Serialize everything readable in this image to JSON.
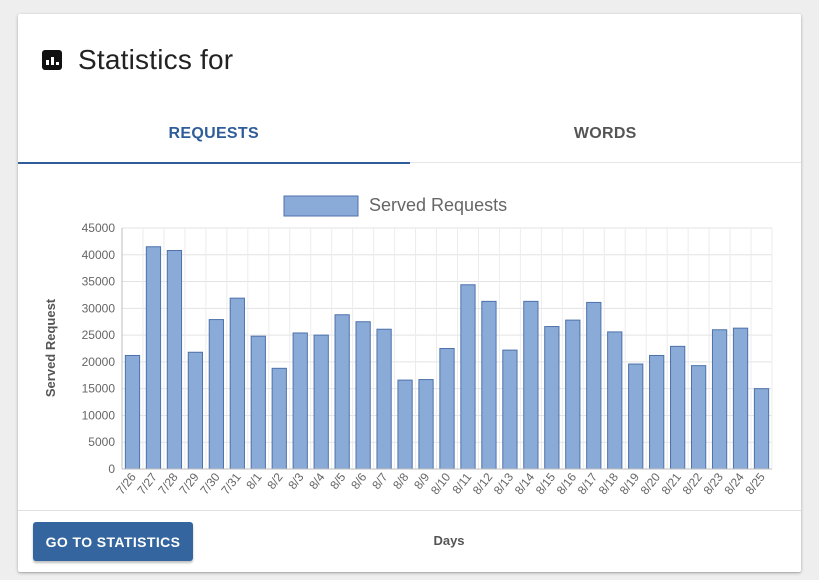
{
  "header": {
    "title": "Statistics for",
    "icon": "bar-chart-icon"
  },
  "tabs": [
    {
      "label": "REQUESTS",
      "active": true
    },
    {
      "label": "WORDS",
      "active": false
    }
  ],
  "footer": {
    "button_label": "GO TO STATISTICS"
  },
  "colors": {
    "accent": "#2f5d9a",
    "bar_fill": "#8aaad8",
    "bar_stroke": "#4d72ab",
    "button": "#34659e"
  },
  "chart_data": {
    "type": "bar",
    "title": "",
    "xlabel": "Days",
    "ylabel": "Served Request",
    "ylim": [
      0,
      45000
    ],
    "yticks": [
      0,
      5000,
      10000,
      15000,
      20000,
      25000,
      30000,
      35000,
      40000,
      45000
    ],
    "grid": true,
    "legend_position": "top-center",
    "categories": [
      "7/26",
      "7/27",
      "7/28",
      "7/29",
      "7/30",
      "7/31",
      "8/1",
      "8/2",
      "8/3",
      "8/4",
      "8/5",
      "8/6",
      "8/7",
      "8/8",
      "8/9",
      "8/10",
      "8/11",
      "8/12",
      "8/13",
      "8/14",
      "8/15",
      "8/16",
      "8/17",
      "8/18",
      "8/19",
      "8/20",
      "8/21",
      "8/22",
      "8/23",
      "8/24",
      "8/25"
    ],
    "series": [
      {
        "name": "Served Requests",
        "values": [
          21200,
          41500,
          40800,
          21800,
          27900,
          31900,
          24800,
          18800,
          25400,
          25000,
          28800,
          27500,
          26100,
          16600,
          16700,
          22500,
          34400,
          31300,
          22200,
          31300,
          26600,
          27800,
          31100,
          25600,
          19600,
          21200,
          22900,
          19300,
          26000,
          26300,
          15000
        ]
      }
    ]
  }
}
